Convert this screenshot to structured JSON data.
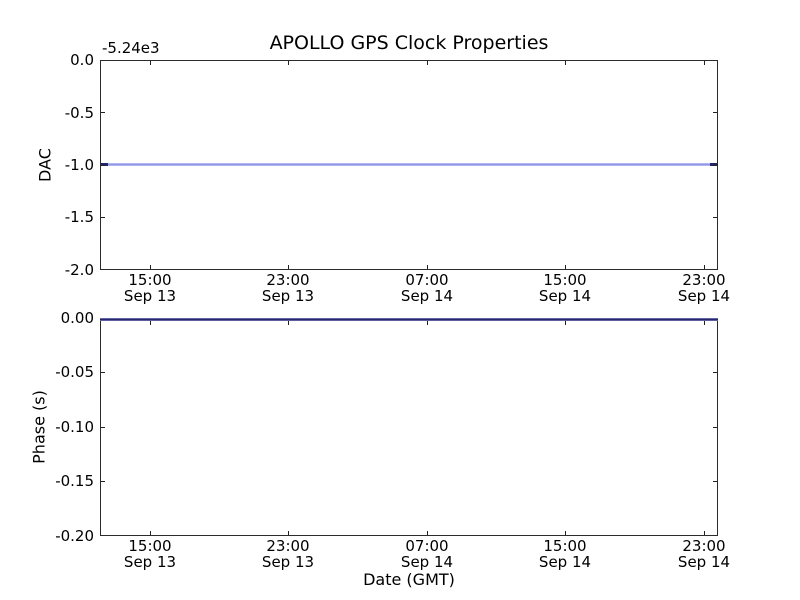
{
  "figure": {
    "title": "APOLLO GPS Clock Properties",
    "background": "#ffffff",
    "axis_color": "#000000",
    "line_color_light": "#9097e8",
    "line_color_dark": "#23236e"
  },
  "chart_data": [
    {
      "type": "line",
      "title": "APOLLO GPS Clock Properties",
      "ylabel": "DAC",
      "y_offset_text": "-5.24e3",
      "ylim": [
        -2.0,
        0.0
      ],
      "grid": false,
      "legend": null,
      "y_ticklabels": [
        "0.0",
        "-0.5",
        "-1.0",
        "-1.5",
        "-2.0"
      ],
      "x_ticklabels": [
        {
          "time": "15:00",
          "date": "Sep 13"
        },
        {
          "time": "23:00",
          "date": "Sep 13"
        },
        {
          "time": "07:00",
          "date": "Sep 14"
        },
        {
          "time": "15:00",
          "date": "Sep 14"
        },
        {
          "time": "23:00",
          "date": "Sep 14"
        }
      ],
      "series": [
        {
          "name": "DAC",
          "shape": "constant-horizontal-line",
          "y_display": -1.0,
          "y_offset": "-5.24e3",
          "color": "#0000ff",
          "x_extent": "full width of axis"
        }
      ]
    },
    {
      "type": "line",
      "ylabel": "Phase (s)",
      "xlabel": "Date (GMT)",
      "ylim": [
        -0.2,
        0.0
      ],
      "grid": false,
      "legend": null,
      "y_ticklabels": [
        "0.00",
        "-0.05",
        "-0.10",
        "-0.15",
        "-0.20"
      ],
      "x_ticklabels": [
        {
          "time": "15:00",
          "date": "Sep 13"
        },
        {
          "time": "23:00",
          "date": "Sep 13"
        },
        {
          "time": "07:00",
          "date": "Sep 14"
        },
        {
          "time": "15:00",
          "date": "Sep 14"
        },
        {
          "time": "23:00",
          "date": "Sep 14"
        }
      ],
      "series": [
        {
          "name": "Phase",
          "shape": "constant-horizontal-line",
          "y_display": 0.0,
          "color": "#0000ff",
          "x_extent": "full width of axis, coincides with top spine"
        }
      ]
    }
  ]
}
